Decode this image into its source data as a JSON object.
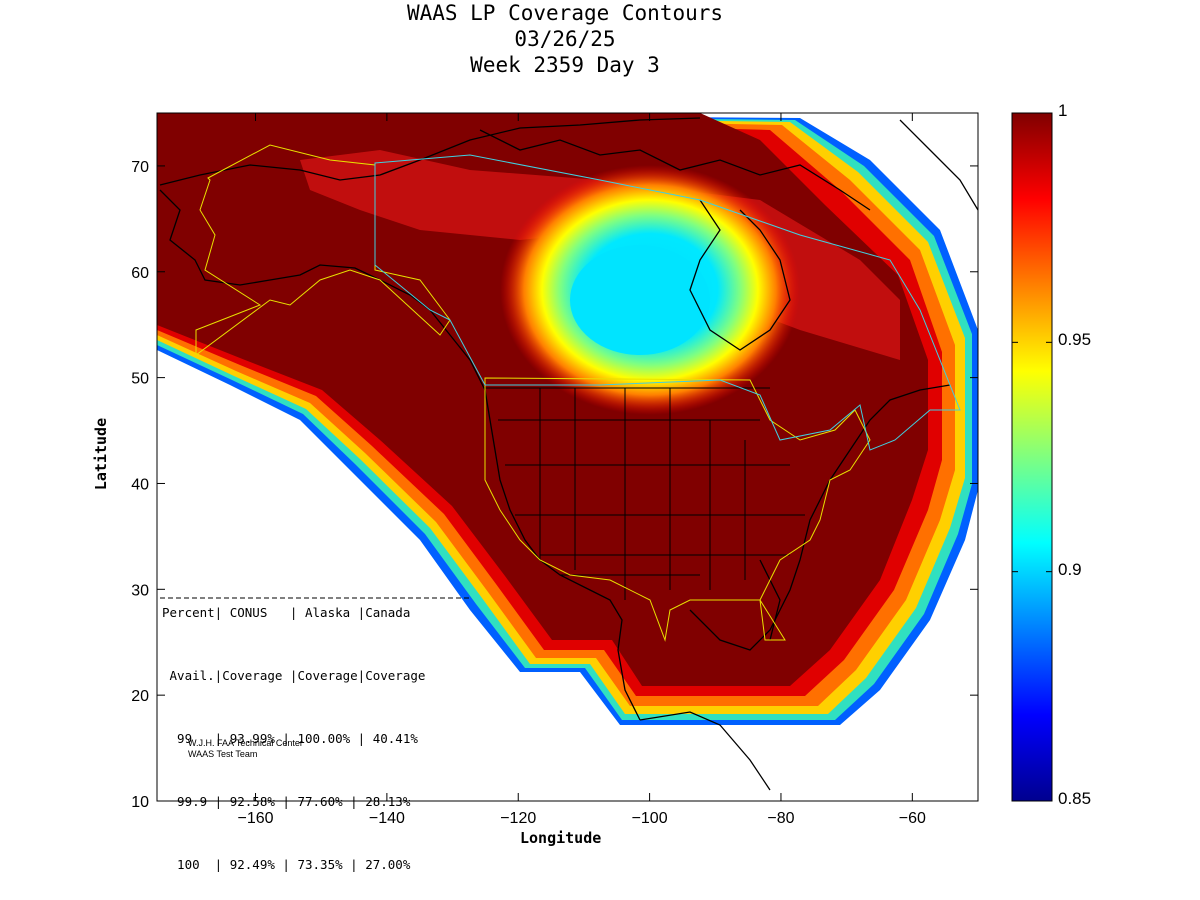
{
  "title": {
    "line1": "WAAS LP Coverage Contours",
    "line2": "03/26/25",
    "line3": "Week 2359 Day 3"
  },
  "axes": {
    "xlabel": "Longitude",
    "ylabel": "Latitude",
    "xlim": [
      -175,
      -50
    ],
    "ylim": [
      10,
      75
    ],
    "xticks": [
      -160,
      -140,
      -120,
      -100,
      -80,
      -60
    ],
    "yticks": [
      10,
      20,
      30,
      40,
      50,
      60,
      70
    ]
  },
  "colorbar": {
    "range": [
      0.85,
      1.0
    ],
    "ticks": [
      {
        "value": 1.0,
        "label": "1"
      },
      {
        "value": 0.95,
        "label": "0.95"
      },
      {
        "value": 0.9,
        "label": "0.9"
      },
      {
        "value": 0.85,
        "label": "0.85"
      }
    ],
    "colormap": "jet"
  },
  "table": {
    "header1": "Percent| CONUS   | Alaska |Canada",
    "header2": " Avail.|Coverage |Coverage|Coverage",
    "rows": [
      "  99   | 93.99% | 100.00% | 40.41%",
      "  99.9 | 92.58% | 77.60% | 28.13%",
      "  100  | 92.49% | 73.35% | 27.00%"
    ]
  },
  "credit": {
    "line1": "W.J.H. FAA Technical Center",
    "line2": "WAAS Test Team"
  },
  "chart_data": {
    "type": "heatmap",
    "description_values": "availability contour map, jet colormap",
    "min_region": {
      "lon": -100,
      "lat": 56,
      "value": 0.9
    },
    "colors": {
      "max": "#800000",
      "min": "#00008f"
    }
  }
}
